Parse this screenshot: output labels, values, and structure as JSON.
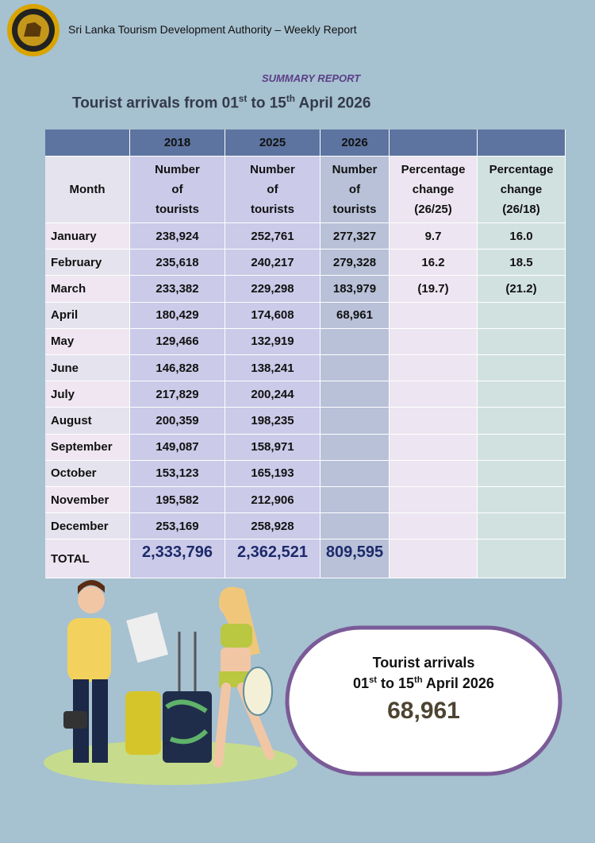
{
  "header": {
    "org": "Sri Lanka Tourism Development Authority – Weekly Report",
    "section": "SUMMARY REPORT",
    "title_parts": [
      "Tourist arrivals from 01",
      "st",
      " to 15",
      "th",
      " April 2026"
    ]
  },
  "table": {
    "years": [
      "2018",
      "2025",
      "2026"
    ],
    "columns": [
      "Month",
      "Number of tourists",
      "Number of tourists",
      "Number of tourists",
      "Percentage change (26/25)",
      "Percentage change (26/18)"
    ],
    "rows": [
      [
        "January",
        "238,924",
        "252,761",
        "277,327",
        "9.7",
        "16.0"
      ],
      [
        "February",
        "235,618",
        "240,217",
        "279,328",
        "16.2",
        "18.5"
      ],
      [
        "March",
        "233,382",
        "229,298",
        "183,979",
        "(19.7)",
        "(21.2)"
      ],
      [
        "April",
        "180,429",
        "174,608",
        "68,961"
      ],
      [
        "May",
        "129,466",
        "132,919"
      ],
      [
        "June",
        "146,828",
        "138,241"
      ],
      [
        "July",
        "217,829",
        "200,244"
      ],
      [
        "August",
        "200,359",
        "198,235"
      ],
      [
        "September",
        "149,087",
        "158,971"
      ],
      [
        "October",
        "153,123",
        "165,193"
      ],
      [
        "November",
        "195,582",
        "212,906"
      ],
      [
        "December",
        "253,169",
        "258,928"
      ]
    ],
    "total": [
      "TOTAL",
      "2,333,796",
      "2,362,521",
      "809,595"
    ]
  },
  "callout": {
    "label": "Tourist arrivals",
    "date_parts": [
      "01",
      "st",
      " to 15",
      "th",
      " April 2026"
    ],
    "value": "68,961"
  }
}
